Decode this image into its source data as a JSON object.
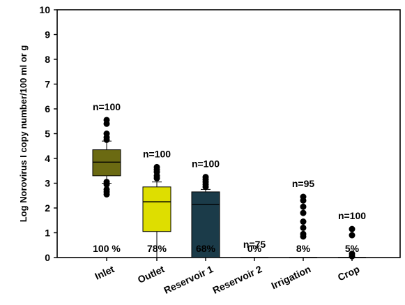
{
  "chart_data": {
    "type": "box",
    "ylabel": "Log Norovirus I  copy number/100 ml or g",
    "xlabel": "",
    "ylim": [
      0,
      10
    ],
    "yticks": [
      0,
      1,
      2,
      3,
      4,
      5,
      6,
      7,
      8,
      9,
      10
    ],
    "categories": [
      "Inlet",
      "Outlet",
      "Reservoir 1",
      "Reservoir 2",
      "Irrigation",
      "Crop"
    ],
    "colors": {
      "inlet": "#6b6a12",
      "outlet": "#dede00",
      "reservoir1": "#1b3b49",
      "reservoir2": "#000000",
      "irrigation": "#000000",
      "crop": "#000000",
      "outlier": "#000000",
      "axis": "#000000"
    },
    "boxes": [
      {
        "category": "Inlet",
        "n": "n=100",
        "percent": "100 %",
        "color": "#6b6a12",
        "whisker_low": 3.0,
        "q1": 3.3,
        "median": 3.85,
        "q3": 4.35,
        "whisker_high": 4.7,
        "outliers": [
          2.55,
          2.65,
          2.75,
          2.95,
          3.05,
          4.75,
          4.85,
          5.0,
          5.4,
          5.55
        ]
      },
      {
        "category": "Outlet",
        "n": "n=100",
        "percent": "78%",
        "color": "#dede00",
        "whisker_low": 0.0,
        "q1": 1.05,
        "median": 2.25,
        "q3": 2.85,
        "whisker_high": 3.05,
        "outliers": [
          3.2,
          3.3,
          3.45,
          3.55,
          3.65
        ]
      },
      {
        "category": "Reservoir 1",
        "n": "n=100",
        "percent": "68%",
        "color": "#1b3b49",
        "whisker_low": 0.0,
        "q1": 0.0,
        "median": 2.15,
        "q3": 2.65,
        "whisker_high": 2.75,
        "outliers": [
          2.85,
          2.95,
          3.05,
          3.15,
          3.25
        ]
      },
      {
        "category": "Reservoir 2",
        "n": "n=75",
        "percent": "0%",
        "color": "#000000",
        "whisker_low": 0.0,
        "q1": 0.0,
        "median": 0.0,
        "q3": 0.0,
        "whisker_high": 0.0,
        "outliers": []
      },
      {
        "category": "Irrigation",
        "n": "n=95",
        "percent": "8%",
        "color": "#000000",
        "whisker_low": 0.0,
        "q1": 0.0,
        "median": 0.0,
        "q3": 0.0,
        "whisker_high": 0.0,
        "outliers": [
          0.85,
          0.95,
          1.2,
          1.45,
          1.8,
          2.05,
          2.3,
          2.45
        ]
      },
      {
        "category": "Crop",
        "n": "n=100",
        "percent": "5%",
        "color": "#000000",
        "whisker_low": 0.0,
        "q1": 0.0,
        "median": 0.0,
        "q3": 0.0,
        "whisker_high": 0.0,
        "outliers": [
          0.05,
          0.15,
          0.9,
          1.15
        ]
      }
    ],
    "grid": false,
    "legend": "none"
  }
}
